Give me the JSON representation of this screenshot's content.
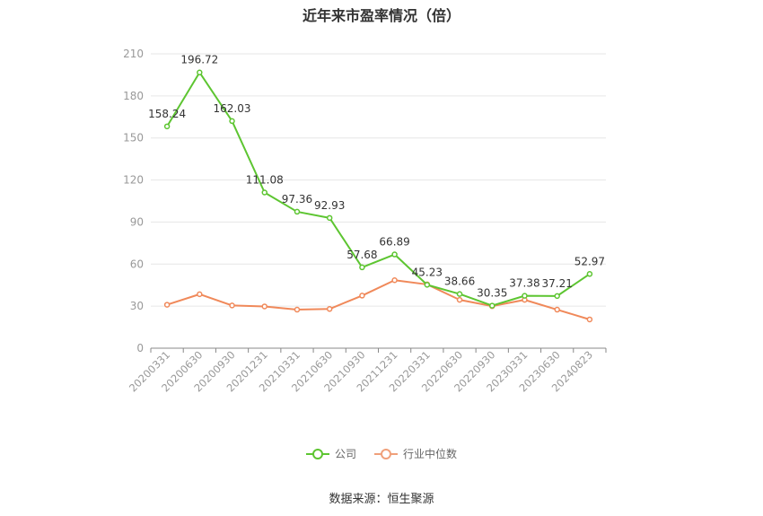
{
  "chart_data": {
    "type": "line",
    "title": "近年来市盈率情况（倍）",
    "categories": [
      "20200331",
      "20200630",
      "20200930",
      "20201231",
      "20210331",
      "20210630",
      "20210930",
      "20211231",
      "20220331",
      "20220630",
      "20220930",
      "20230331",
      "20230630",
      "20240823"
    ],
    "series": [
      {
        "name": "公司",
        "color": "#5dc531",
        "values": [
          158.24,
          196.72,
          162.03,
          111.08,
          97.36,
          92.93,
          57.68,
          66.89,
          45.23,
          38.66,
          30.35,
          37.38,
          37.21,
          52.97
        ],
        "labels": [
          "158.24",
          "196.72",
          "162.03",
          "111.08",
          "97.36",
          "92.93",
          "57.68",
          "66.89",
          "45.23",
          "38.66",
          "30.35",
          "37.38",
          "37.21",
          "52.97"
        ]
      },
      {
        "name": "行业中位数",
        "color": "#f0895a",
        "values": [
          31,
          38.5,
          30.5,
          29.8,
          27.5,
          28,
          37.5,
          48.5,
          45.5,
          34.5,
          30,
          34.5,
          27.5,
          20.5
        ]
      }
    ],
    "ylim": [
      0,
      210
    ],
    "yticks": [
      "0",
      "30",
      "60",
      "90",
      "120",
      "150",
      "180",
      "210"
    ],
    "grid": true,
    "legend_position": "bottom"
  },
  "source_text": "数据来源：恒生聚源"
}
